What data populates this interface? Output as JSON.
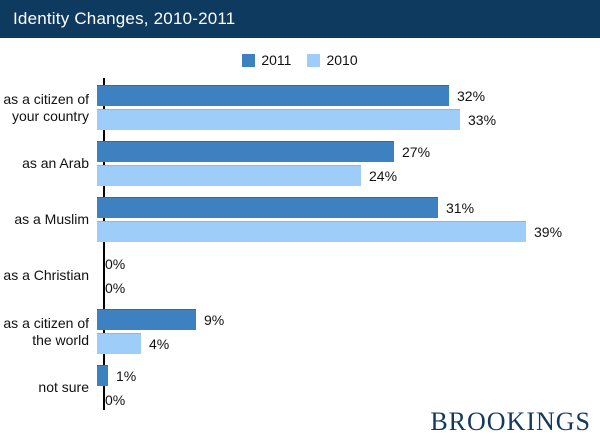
{
  "header": {
    "title": "Identity Changes, 2010-2011"
  },
  "colors": {
    "header_bg": "#0D3A5E",
    "brand_text": "#14395F",
    "axis": "#000000",
    "series_2011": "#3E81C1",
    "series_2011_edge": "#2E6DA8",
    "series_2010": "#9ECDF9",
    "series_2010_edge": "#82B8EF"
  },
  "legend": {
    "items": [
      {
        "label": "2011",
        "color": "#3E81C1"
      },
      {
        "label": "2010",
        "color": "#9ECDF9"
      }
    ]
  },
  "chart_data": {
    "type": "bar",
    "orientation": "horizontal",
    "title": "Identity Changes, 2010-2011",
    "categories": [
      "as a citizen of your country",
      "as an Arab",
      "as a Muslim",
      "as a Christian",
      "as a citizen of the world",
      "not sure"
    ],
    "series": [
      {
        "name": "2011",
        "color": "#3E81C1",
        "edge": "#2E6DA8",
        "values": [
          32,
          27,
          31,
          0,
          9,
          1
        ]
      },
      {
        "name": "2010",
        "color": "#9ECDF9",
        "edge": "#82B8EF",
        "values": [
          33,
          24,
          39,
          0,
          4,
          0
        ]
      }
    ],
    "value_suffix": "%",
    "xlim": [
      0,
      40
    ],
    "grid": false,
    "legend_position": "top-center",
    "value_labels": "outside-end"
  },
  "footer": {
    "brand": "BROOKINGS"
  }
}
